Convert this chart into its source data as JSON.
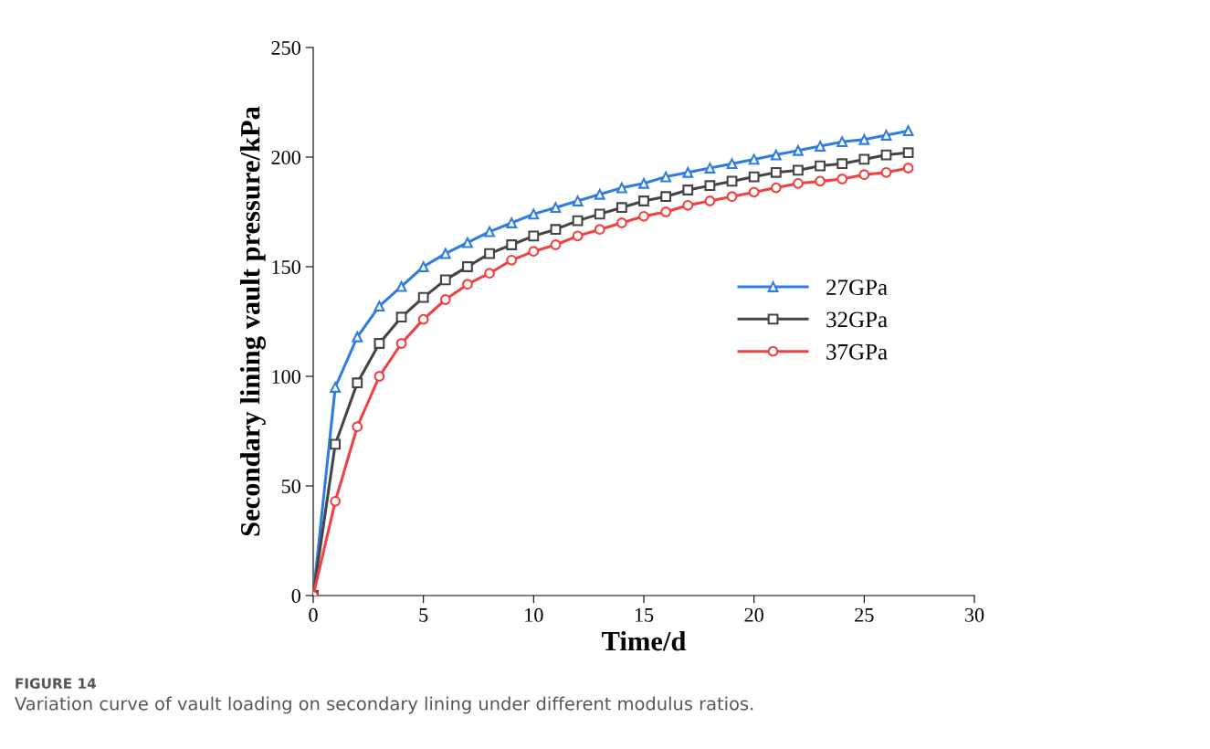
{
  "chart_data": {
    "type": "line",
    "xlabel": "Time/d",
    "ylabel": "Secondary lining vault pressure/kPa",
    "x": [
      0,
      1,
      2,
      3,
      4,
      5,
      6,
      7,
      8,
      9,
      10,
      11,
      12,
      13,
      14,
      15,
      16,
      17,
      18,
      19,
      20,
      21,
      22,
      23,
      24,
      25,
      26,
      27
    ],
    "series": [
      {
        "name": "27GPa",
        "color": "#2f7de1",
        "marker": "triangle",
        "values": [
          0,
          95,
          118,
          132,
          141,
          150,
          156,
          161,
          166,
          170,
          174,
          177,
          180,
          183,
          186,
          188,
          191,
          193,
          195,
          197,
          199,
          201,
          203,
          205,
          207,
          208,
          210,
          212
        ]
      },
      {
        "name": "32GPa",
        "color": "#444444",
        "marker": "square",
        "values": [
          0,
          69,
          97,
          115,
          127,
          136,
          144,
          150,
          156,
          160,
          164,
          167,
          171,
          174,
          177,
          180,
          182,
          185,
          187,
          189,
          191,
          193,
          194,
          196,
          197,
          199,
          201,
          202
        ]
      },
      {
        "name": "37GPa",
        "color": "#f04040",
        "marker": "circle",
        "values": [
          0,
          43,
          77,
          100,
          115,
          126,
          135,
          142,
          147,
          153,
          157,
          160,
          164,
          167,
          170,
          173,
          175,
          178,
          180,
          182,
          184,
          186,
          188,
          189,
          190,
          192,
          193,
          195
        ]
      }
    ],
    "xlim": [
      0,
      30
    ],
    "xticks": [
      0,
      5,
      10,
      15,
      20,
      25,
      30
    ],
    "ylim": [
      0,
      250
    ],
    "yticks": [
      0,
      50,
      100,
      150,
      200,
      250
    ],
    "grid": false,
    "legend": "center right",
    "line_style": "solid",
    "annotations": [
      "FIGURE 14",
      "Variation curve of vault loading on secondary lining under different modulus ratios."
    ]
  }
}
